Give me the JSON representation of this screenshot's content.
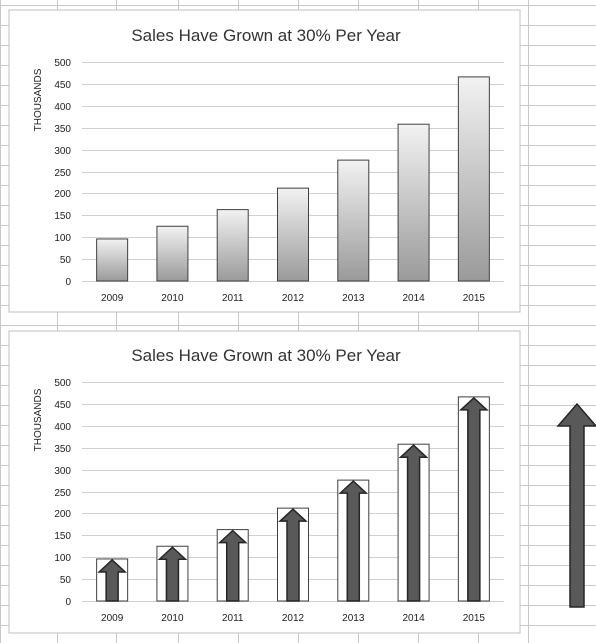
{
  "colors": {
    "sheet_grid": "#c8c8c8",
    "panel_border": "#bfbfbf",
    "plot_grid": "#d0d0d0",
    "bar_top": "#f2f2f2",
    "bar_bottom": "#9a9a9a",
    "arrow_fill": "#595959",
    "arrow_stroke": "#262626"
  },
  "chart_data": [
    {
      "type": "bar",
      "style": "gradient-columns",
      "title": "Sales Have Grown at 30% Per Year",
      "ylabel": "THOUSANDS",
      "xlabel": "",
      "categories": [
        "2009",
        "2010",
        "2011",
        "2012",
        "2013",
        "2014",
        "2015"
      ],
      "values": [
        96,
        125,
        163,
        212,
        276,
        358,
        466
      ],
      "ylim": [
        0,
        500
      ],
      "yticks": [
        0,
        50,
        100,
        150,
        200,
        250,
        300,
        350,
        400,
        450,
        500
      ],
      "grid": true
    },
    {
      "type": "bar",
      "style": "outlined-columns-with-arrows",
      "title": "Sales Have Grown at 30% Per Year",
      "ylabel": "THOUSANDS",
      "xlabel": "",
      "categories": [
        "2009",
        "2010",
        "2011",
        "2012",
        "2013",
        "2014",
        "2015"
      ],
      "values": [
        96,
        125,
        163,
        212,
        276,
        358,
        466
      ],
      "ylim": [
        0,
        500
      ],
      "yticks": [
        0,
        50,
        100,
        150,
        200,
        250,
        300,
        350,
        400,
        450,
        500
      ],
      "grid": true
    }
  ],
  "side_shape": {
    "icon": "up-arrow-shape"
  }
}
